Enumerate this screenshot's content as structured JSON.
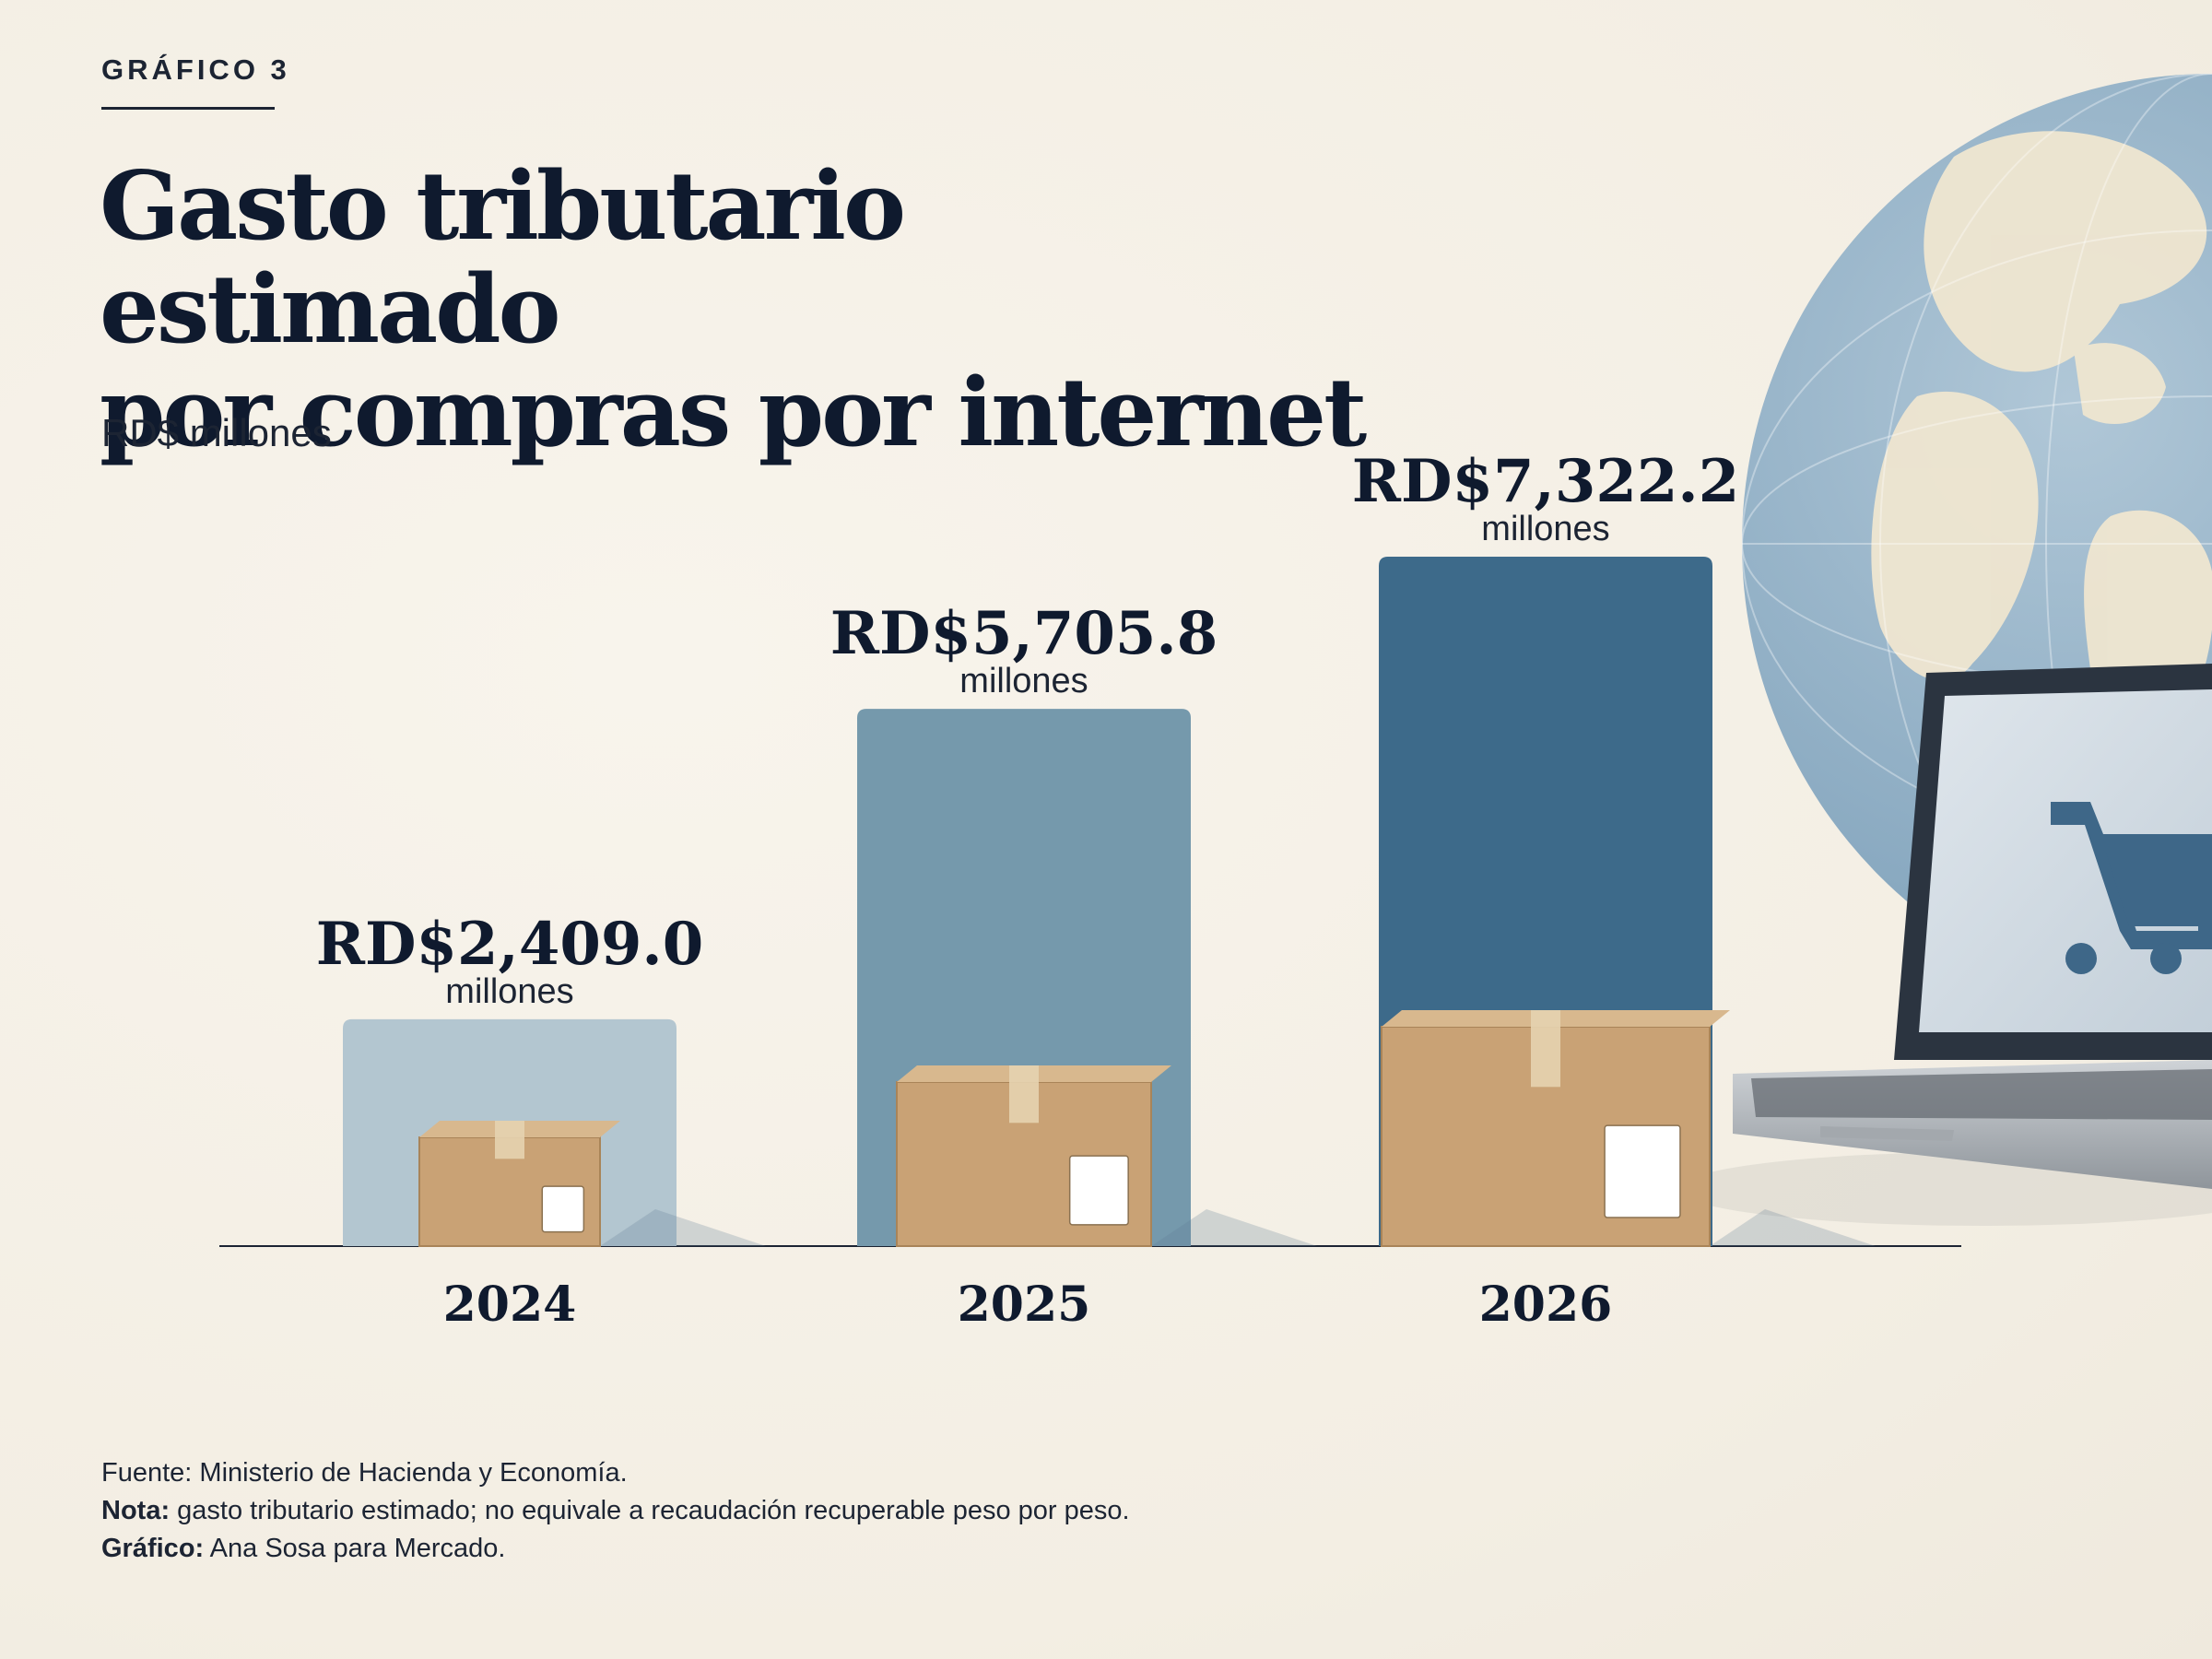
{
  "header": {
    "eyebrow": "GRÁFICO 3",
    "title_line1": "Gasto tributario estimado",
    "title_line2": "por compras por internet",
    "subtitle": "RD$ millones"
  },
  "chart_data": {
    "type": "bar",
    "categories": [
      "2024",
      "2025",
      "2026"
    ],
    "values": [
      2409.0,
      5705.8,
      7322.2
    ],
    "value_labels": [
      "RD$2,409.0",
      "RD$5,705.8",
      "RD$7,322.2"
    ],
    "unit_label": "millones",
    "ylabel": "RD$ millones",
    "ylim": [
      0,
      7322.2
    ],
    "grid": false,
    "legend": "none",
    "colors": [
      "#b3c6d0",
      "#7599ac",
      "#3d6a8a"
    ]
  },
  "illustration": {
    "icons": [
      "cardboard-box-icon",
      "globe-icon",
      "laptop-icon",
      "shopping-cart-icon",
      "barcode-label-icon"
    ],
    "colors": {
      "box": "#c9a275",
      "globe_land": "#efe6d0",
      "globe_water": "#7da3c0",
      "laptop": "#b9bec4"
    }
  },
  "footer": {
    "source_label": "Fuente:",
    "source_text": "Ministerio de Hacienda y Economía.",
    "note_label": "Nota:",
    "note_text": "gasto tributario estimado; no equivale a recaudación recuperable peso por peso.",
    "credit_label": "Gráfico:",
    "credit_text": "Ana Sosa para Mercado."
  }
}
